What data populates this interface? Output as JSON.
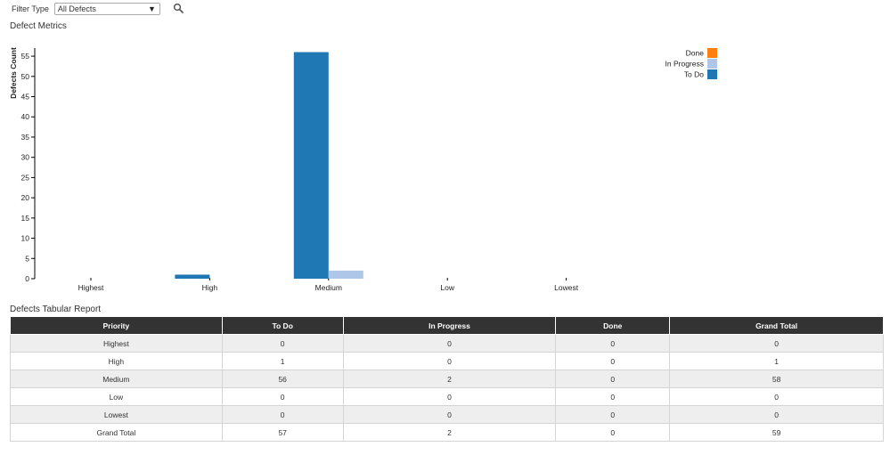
{
  "filter": {
    "label": "Filter Type",
    "selected": "All Defects"
  },
  "chart_title": "Defect Metrics",
  "table_title": "Defects Tabular Report",
  "chart_data": {
    "type": "bar",
    "categories": [
      "Highest",
      "High",
      "Medium",
      "Low",
      "Lowest"
    ],
    "series": [
      {
        "name": "To Do",
        "values": [
          0,
          1,
          56,
          0,
          0
        ],
        "color": "#1f77b4"
      },
      {
        "name": "In Progress",
        "values": [
          0,
          0,
          2,
          0,
          0
        ],
        "color": "#aec7e8"
      },
      {
        "name": "Done",
        "values": [
          0,
          0,
          0,
          0,
          0
        ],
        "color": "#ff7f0e"
      }
    ],
    "legend_order": [
      "Done",
      "In Progress",
      "To Do"
    ],
    "legend_placement": "top-right",
    "ylabel": "Defects Count",
    "xlabel": "",
    "ylim": [
      0,
      57
    ],
    "yticks": [
      0,
      5,
      10,
      15,
      20,
      25,
      30,
      35,
      40,
      45,
      50,
      55
    ]
  },
  "table": {
    "headers": [
      "Priority",
      "To Do",
      "In Progress",
      "Done",
      "Grand Total"
    ],
    "rows": [
      [
        "Highest",
        "0",
        "0",
        "0",
        "0"
      ],
      [
        "High",
        "1",
        "0",
        "0",
        "1"
      ],
      [
        "Medium",
        "56",
        "2",
        "0",
        "58"
      ],
      [
        "Low",
        "0",
        "0",
        "0",
        "0"
      ],
      [
        "Lowest",
        "0",
        "0",
        "0",
        "0"
      ],
      [
        "Grand Total",
        "57",
        "2",
        "0",
        "59"
      ]
    ]
  }
}
